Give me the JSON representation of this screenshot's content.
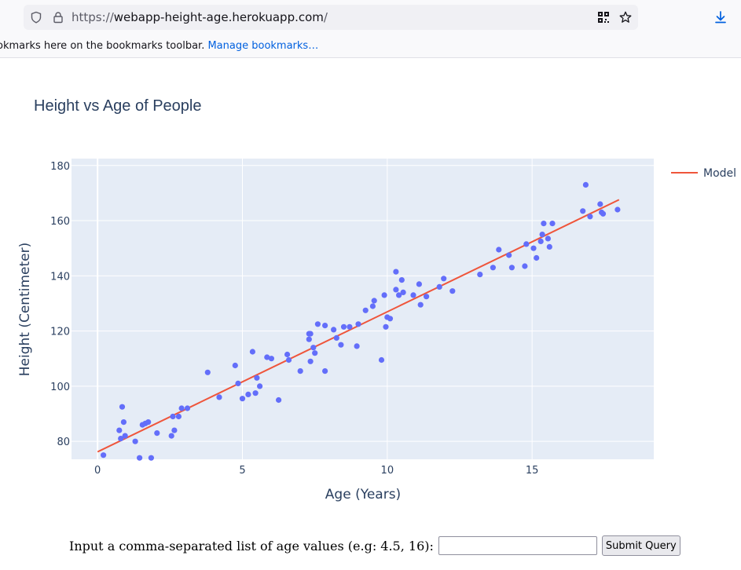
{
  "browser": {
    "url_scheme": "https://",
    "url_host": "webapp-height-age.herokuapp.com",
    "url_path": "/",
    "bookmarks_message": "okmarks here on the bookmarks toolbar.",
    "manage_bookmarks_label": "Manage bookmarks…"
  },
  "chart_data": {
    "type": "scatter",
    "title": "Height vs Age of People",
    "xlabel": "Age (Years)",
    "ylabel": "Height (Centimeter)",
    "xlim": [
      -0.9,
      19.2
    ],
    "ylim": [
      73.5,
      182.5
    ],
    "xticks": [
      0,
      5,
      10,
      15
    ],
    "yticks": [
      80,
      100,
      120,
      140,
      160,
      180
    ],
    "grid": true,
    "legend": "top-right",
    "colors": {
      "points": "#636efa",
      "model": "#ef553b",
      "plot_bg": "#e5ecf6",
      "text": "#2a3f5f"
    },
    "points": {
      "x": [
        0.2,
        0.75,
        0.8,
        0.85,
        0.9,
        0.95,
        1.3,
        1.45,
        1.55,
        1.65,
        1.75,
        1.85,
        2.05,
        2.55,
        2.6,
        2.65,
        2.8,
        2.9,
        3.1,
        3.8,
        4.2,
        4.75,
        4.85,
        5.0,
        5.2,
        5.35,
        5.45,
        5.5,
        5.6,
        5.85,
        6.0,
        6.25,
        6.55,
        6.6,
        7.0,
        7.3,
        7.3,
        7.35,
        7.35,
        7.45,
        7.5,
        7.6,
        7.85,
        7.85,
        8.15,
        8.25,
        8.4,
        8.5,
        8.7,
        8.95,
        9.0,
        9.25,
        9.5,
        9.55,
        9.8,
        9.9,
        9.95,
        10.0,
        10.1,
        10.3,
        10.3,
        10.4,
        10.5,
        10.55,
        10.9,
        11.1,
        11.15,
        11.35,
        11.8,
        11.95,
        12.25,
        13.2,
        13.65,
        13.85,
        14.2,
        14.3,
        14.75,
        14.8,
        15.05,
        15.15,
        15.3,
        15.35,
        15.4,
        15.55,
        15.6,
        15.7,
        16.75,
        16.85,
        17.0,
        17.35,
        17.4,
        17.45,
        17.95
      ],
      "y": [
        75,
        84,
        81,
        92.5,
        87,
        82,
        80,
        74,
        86,
        86.5,
        87,
        74,
        83,
        82,
        89,
        84,
        89,
        92,
        92,
        105,
        96,
        107.5,
        101,
        95.5,
        97,
        112.5,
        97.5,
        103,
        100,
        110.5,
        110,
        95,
        111.5,
        109.5,
        105.5,
        117,
        119,
        109,
        119,
        114,
        112,
        122.5,
        122,
        105.5,
        120.5,
        117.5,
        115,
        121.5,
        121.5,
        114.5,
        122.5,
        127.5,
        129,
        131,
        109.5,
        133,
        121.5,
        125,
        124.5,
        135,
        141.5,
        133,
        138.5,
        134,
        133,
        137,
        129.5,
        132.5,
        136,
        139,
        134.5,
        140.5,
        143,
        149.5,
        147.5,
        143,
        143.5,
        151.5,
        150,
        146.5,
        152.5,
        155,
        159,
        153.5,
        150.5,
        159,
        163.5,
        173,
        161.5,
        166,
        163,
        162.5,
        164
      ]
    },
    "model": {
      "name": "Model",
      "x": [
        0,
        18
      ],
      "y": [
        76.2,
        167.6
      ]
    }
  },
  "form": {
    "prompt": "Input a comma-separated list of age values (e.g: 4.5, 16):",
    "input_value": "",
    "submit_label": "Submit Query"
  }
}
